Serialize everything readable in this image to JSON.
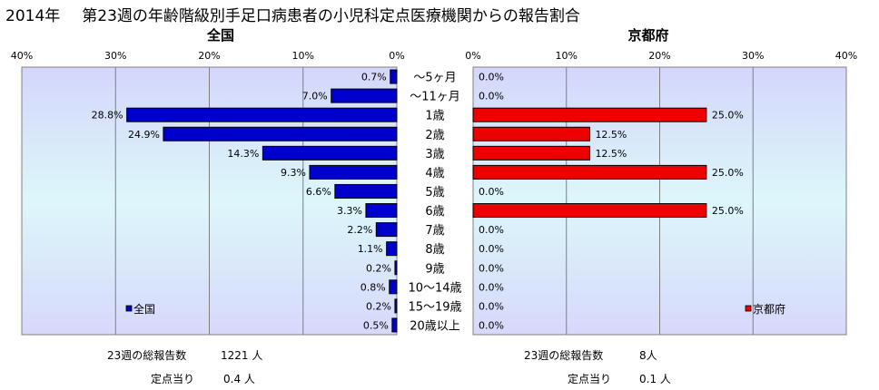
{
  "title": {
    "year": "2014年",
    "text": "第23週の年齢階級別手足口病患者の小児科定点医療機関からの報告割合"
  },
  "stats": {
    "national": {
      "total_label": "23週の総報告数",
      "total_value": "1221 人",
      "per_label": "定点当り",
      "per_value": "0.4 人"
    },
    "kyoto": {
      "total_label": "23週の総報告数",
      "total_value": "8人",
      "per_label": "定点当り",
      "per_value": "0.1 人"
    }
  },
  "chart_data": [
    {
      "type": "bar",
      "title": "全国",
      "orientation": "horizontal-reversed",
      "categories": [
        "～5ヶ月",
        "～11ヶ月",
        "1歳",
        "2歳",
        "3歳",
        "4歳",
        "5歳",
        "6歳",
        "7歳",
        "8歳",
        "9歳",
        "10～14歳",
        "15～19歳",
        "20歳以上"
      ],
      "series": [
        {
          "name": "全国",
          "values": [
            0.7,
            7.0,
            28.8,
            24.9,
            14.3,
            9.3,
            6.6,
            3.3,
            2.2,
            1.1,
            0.2,
            0.8,
            0.2,
            0.5
          ]
        }
      ],
      "data_labels": [
        "0.7%",
        "7.0%",
        "28.8%",
        "24.9%",
        "14.3%",
        "9.3%",
        "6.6%",
        "3.3%",
        "2.2%",
        "1.1%",
        "0.2%",
        "0.8%",
        "0.2%",
        "0.5%"
      ],
      "xlim": [
        0,
        40
      ],
      "ticks": [
        "40%",
        "30%",
        "20%",
        "10%",
        "0%"
      ],
      "legend": "bottom-left",
      "grid": true,
      "color": "#0000cc"
    },
    {
      "type": "bar",
      "title": "京都府",
      "orientation": "horizontal",
      "categories": [
        "～5ヶ月",
        "～11ヶ月",
        "1歳",
        "2歳",
        "3歳",
        "4歳",
        "5歳",
        "6歳",
        "7歳",
        "8歳",
        "9歳",
        "10～14歳",
        "15～19歳",
        "20歳以上"
      ],
      "series": [
        {
          "name": "京都府",
          "values": [
            0.0,
            0.0,
            25.0,
            12.5,
            12.5,
            25.0,
            0.0,
            25.0,
            0.0,
            0.0,
            0.0,
            0.0,
            0.0,
            0.0
          ]
        }
      ],
      "data_labels": [
        "0.0%",
        "0.0%",
        "25.0%",
        "12.5%",
        "12.5%",
        "25.0%",
        "0.0%",
        "25.0%",
        "0.0%",
        "0.0%",
        "0.0%",
        "0.0%",
        "0.0%",
        "0.0%"
      ],
      "xlim": [
        0,
        40
      ],
      "ticks": [
        "0%",
        "10%",
        "20%",
        "30%",
        "40%"
      ],
      "legend": "bottom-right",
      "grid": true,
      "color": "#ee0000"
    }
  ]
}
